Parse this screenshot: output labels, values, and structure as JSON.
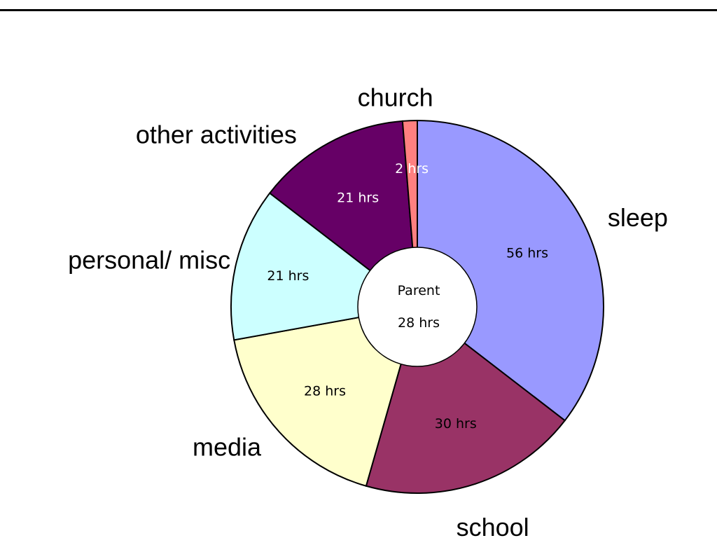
{
  "chart_data": {
    "type": "pie",
    "style": "doughnut",
    "title": "",
    "categories": [
      "sleep",
      "school",
      "media",
      "personal/ misc",
      "other activities",
      "church"
    ],
    "values": [
      56,
      30,
      28,
      21,
      21,
      2
    ],
    "value_labels": [
      "56 hrs",
      "30 hrs",
      "28 hrs",
      "21 hrs",
      "21 hrs",
      "2 hrs"
    ],
    "colors": [
      "#9999ff",
      "#993366",
      "#ffffcc",
      "#ccffff",
      "#660066",
      "#ff8080"
    ],
    "value_label_colors": [
      "#000000",
      "#000000",
      "#000000",
      "#000000",
      "#ffffff",
      "#ffffff"
    ],
    "center": {
      "line1": "Parent",
      "line2": "28 hrs"
    },
    "legend": "none",
    "labels_outside": true
  }
}
